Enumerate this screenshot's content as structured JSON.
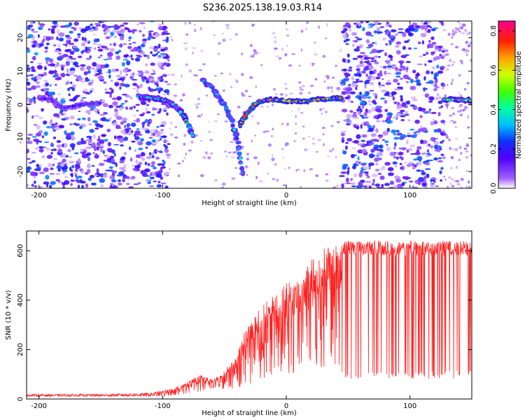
{
  "title": "S236.2025.138.19.03.R14",
  "chart_data": [
    {
      "type": "heatmap",
      "xlabel": "Height of straight line (km)",
      "ylabel": "Frequency (Hz)",
      "xlim": [
        -210,
        150
      ],
      "ylim": [
        -25,
        25
      ],
      "xticks": [
        -200,
        -100,
        0,
        100
      ],
      "yticks": [
        -20,
        -10,
        0,
        10,
        20
      ],
      "colorbar": {
        "label": "Normalized spectral amplitude",
        "range": [
          0,
          0.85
        ],
        "ticks": [
          0.0,
          0.2,
          0.4,
          0.6,
          0.8
        ],
        "colormap": [
          "#ffffff",
          "#8000ff",
          "#3030ff",
          "#00e0e0",
          "#00ff40",
          "#c0ff00",
          "#ffff00",
          "#ff8000",
          "#ff0000",
          "#ff0080"
        ]
      },
      "noise_regions_x": [
        [
          -210,
          -95
        ],
        [
          45,
          127
        ]
      ],
      "ridges": [
        {
          "points": [
            [
              -200,
              2
            ],
            [
              -190,
              1.5
            ],
            [
              -180,
              -1
            ],
            [
              -165,
              0
            ],
            [
              -150,
              0.5
            ]
          ],
          "amplitude": 0.25
        },
        {
          "points": [
            [
              -120,
              2.5
            ],
            [
              -108,
              2
            ],
            [
              -95,
              1
            ],
            [
              -88,
              -1
            ],
            [
              -82,
              -4
            ],
            [
              -78,
              -7
            ],
            [
              -75,
              -10
            ]
          ],
          "amplitude": 0.5
        },
        {
          "points": [
            [
              -68,
              7.5
            ],
            [
              -60,
              5
            ],
            [
              -50,
              0
            ],
            [
              -44,
              -5
            ],
            [
              -40,
              -10
            ],
            [
              -37,
              -16
            ],
            [
              -35,
              -22
            ]
          ],
          "amplitude": 0.42
        },
        {
          "points": [
            [
              -37,
              -6
            ],
            [
              -33,
              -3
            ],
            [
              -28,
              -1
            ],
            [
              -22,
              1
            ],
            [
              -15,
              1.5
            ],
            [
              -5,
              1.3
            ],
            [
              5,
              1
            ],
            [
              15,
              1
            ],
            [
              25,
              1.5
            ],
            [
              35,
              1.8
            ],
            [
              45,
              2
            ]
          ],
          "amplitude": 0.8
        },
        {
          "points": [
            [
              127,
              1.5
            ],
            [
              137,
              1.5
            ],
            [
              150,
              1.2
            ]
          ],
          "amplitude": 0.6
        }
      ]
    },
    {
      "type": "line",
      "xlabel": "Height of straight line (km)",
      "ylabel": "SNR (10 * v/v)",
      "xlim": [
        -210,
        150
      ],
      "ylim": [
        0,
        680
      ],
      "xticks": [
        -200,
        -100,
        0,
        100
      ],
      "yticks": [
        0,
        200,
        400,
        600
      ],
      "series": [
        {
          "color": "#ff2020",
          "envelope": [
            [
              -210,
              20
            ],
            [
              -150,
              20
            ],
            [
              -110,
              25
            ],
            [
              -100,
              35
            ],
            [
              -90,
              45
            ],
            [
              -80,
              70
            ],
            [
              -70,
              100
            ],
            [
              -60,
              80
            ],
            [
              -50,
              120
            ],
            [
              -40,
              170
            ],
            [
              -35,
              260
            ],
            [
              -30,
              300
            ],
            [
              -20,
              380
            ],
            [
              -10,
              420
            ],
            [
              0,
              470
            ],
            [
              10,
              490
            ],
            [
              20,
              560
            ],
            [
              25,
              600
            ],
            [
              35,
              630
            ],
            [
              50,
              640
            ],
            [
              100,
              640
            ],
            [
              150,
              640
            ]
          ],
          "baseline": [
            [
              -210,
              10
            ],
            [
              -100,
              10
            ],
            [
              -80,
              20
            ],
            [
              -60,
              40
            ],
            [
              -40,
              40
            ],
            [
              -30,
              60
            ],
            [
              -20,
              80
            ],
            [
              0,
              100
            ],
            [
              20,
              90
            ],
            [
              40,
              80
            ],
            [
              60,
              80
            ],
            [
              100,
              80
            ],
            [
              150,
              85
            ]
          ]
        }
      ]
    }
  ]
}
